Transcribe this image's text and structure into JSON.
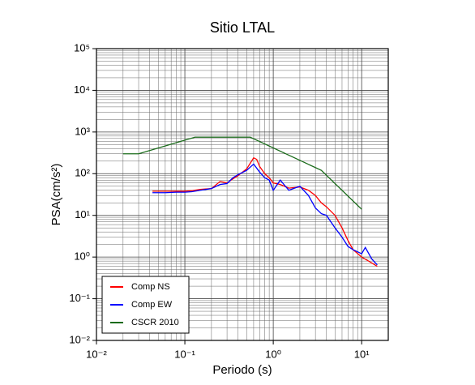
{
  "chart_data": {
    "type": "line",
    "title": "Sitio LTAL",
    "x_label": "Periodo (s)",
    "y_label": "PSA(cm/s²)",
    "log_x": true,
    "log_y": true,
    "grid": true,
    "minor_grid": true,
    "legend_position": "lower left",
    "xlim": [
      0.01,
      20
    ],
    "ylim": [
      0.01,
      100000
    ],
    "xticks": [
      {
        "value": 0.01,
        "label": "10⁻²"
      },
      {
        "value": 0.1,
        "label": "10⁻¹"
      },
      {
        "value": 1,
        "label": "10⁰"
      },
      {
        "value": 10,
        "label": "10¹"
      }
    ],
    "yticks": [
      {
        "value": 0.01,
        "label": "10⁻²"
      },
      {
        "value": 0.1,
        "label": "10⁻¹"
      },
      {
        "value": 1,
        "label": "10⁰"
      },
      {
        "value": 10,
        "label": "10¹"
      },
      {
        "value": 100,
        "label": "10²"
      },
      {
        "value": 1000,
        "label": "10³"
      },
      {
        "value": 10000,
        "label": "10⁴"
      },
      {
        "value": 100000,
        "label": "10⁵"
      }
    ],
    "series": [
      {
        "name": "Comp NS",
        "color": "#ff0000",
        "x": [
          0.043,
          0.06,
          0.08,
          0.1,
          0.12,
          0.15,
          0.2,
          0.25,
          0.3,
          0.35,
          0.4,
          0.5,
          0.6,
          0.65,
          0.7,
          0.8,
          0.9,
          1.0,
          1.2,
          1.5,
          2.0,
          2.5,
          3.0,
          3.5,
          4.0,
          5.0,
          6.0,
          7.0,
          8.0,
          10.0,
          12.0,
          15.0
        ],
        "values": [
          38,
          38,
          38,
          38,
          39,
          42,
          44,
          65,
          60,
          75,
          90,
          130,
          240,
          220,
          150,
          100,
          80,
          60,
          55,
          45,
          48,
          40,
          30,
          20,
          16,
          10,
          5,
          2.5,
          1.5,
          1.0,
          0.8,
          0.6
        ]
      },
      {
        "name": "Comp EW",
        "color": "#0000ff",
        "x": [
          0.043,
          0.06,
          0.08,
          0.1,
          0.12,
          0.15,
          0.2,
          0.25,
          0.3,
          0.35,
          0.4,
          0.5,
          0.6,
          0.7,
          0.8,
          0.9,
          1.0,
          1.2,
          1.5,
          2.0,
          2.5,
          3.0,
          3.5,
          4.0,
          5.0,
          6.0,
          7.0,
          8.0,
          10.0,
          11.0,
          13.0,
          15.0
        ],
        "values": [
          35,
          35,
          36,
          36,
          37,
          40,
          44,
          55,
          58,
          80,
          95,
          120,
          170,
          110,
          80,
          70,
          40,
          70,
          40,
          50,
          30,
          15,
          11,
          10,
          5,
          3,
          1.8,
          1.5,
          1.2,
          1.7,
          0.9,
          0.65
        ]
      },
      {
        "name": "CSCR 2010",
        "color": "#1a6b1a",
        "x": [
          0.02,
          0.03,
          0.13,
          0.55,
          3.5,
          10
        ],
        "values": [
          300,
          300,
          750,
          750,
          120,
          14
        ]
      }
    ]
  }
}
